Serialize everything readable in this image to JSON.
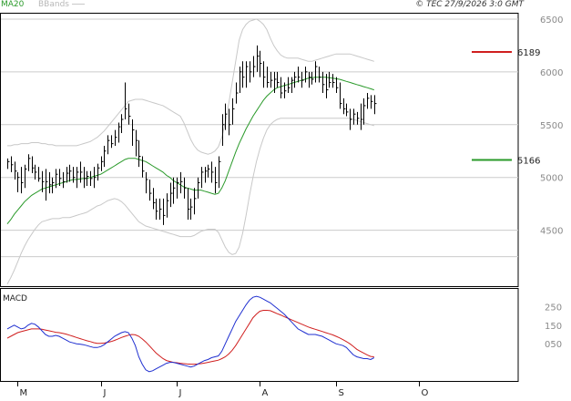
{
  "header": {
    "legend_ma": "MA20",
    "legend_bb": "BBands",
    "copyright": "© TEC 27/9/2026 3:0 GMT"
  },
  "colors": {
    "ma": "#2a9a2a",
    "bands": "#c8c8c8",
    "bars": "#000000",
    "macd": "#1f2fd0",
    "signal": "#d01f1f",
    "resistance": "#d01f1f",
    "support": "#2a9a2a",
    "grid": "#cccccc"
  },
  "chart_data": [
    {
      "type": "ohlc",
      "title": "",
      "ylim": [
        3970,
        6560
      ],
      "y_ticks": [
        4500,
        5000,
        5500,
        6000,
        6500
      ],
      "y_tick_labels": [
        "4500",
        "5000",
        "5500",
        "6000",
        "6500"
      ],
      "x_tick_labels": [
        "M",
        "J",
        "J",
        "A",
        "S",
        "O"
      ],
      "x_tick_index": [
        3,
        27,
        49,
        73,
        95,
        119
      ],
      "grid": true,
      "bars": [
        [
          5180,
          5080,
          5150
        ],
        [
          5200,
          5050,
          5120
        ],
        [
          5150,
          4980,
          5060
        ],
        [
          5050,
          4860,
          5000
        ],
        [
          5100,
          4850,
          4950
        ],
        [
          5120,
          4900,
          5080
        ],
        [
          5220,
          5060,
          5180
        ],
        [
          5200,
          5040,
          5090
        ],
        [
          5120,
          4980,
          5050
        ],
        [
          5100,
          4960,
          4990
        ],
        [
          5060,
          4860,
          4960
        ],
        [
          5080,
          4780,
          4960
        ],
        [
          5050,
          4850,
          4930
        ],
        [
          5000,
          4850,
          4950
        ],
        [
          5080,
          4900,
          5030
        ],
        [
          5080,
          4920,
          4990
        ],
        [
          5050,
          4900,
          4960
        ],
        [
          5100,
          4950,
          5040
        ],
        [
          5120,
          4960,
          5060
        ],
        [
          5100,
          4950,
          5000
        ],
        [
          5100,
          4900,
          5050
        ],
        [
          5150,
          4950,
          5050
        ],
        [
          5100,
          4900,
          4990
        ],
        [
          5060,
          4920,
          5010
        ],
        [
          5060,
          4920,
          4990
        ],
        [
          5100,
          4900,
          5000
        ],
        [
          5130,
          4970,
          5090
        ],
        [
          5200,
          5060,
          5150
        ],
        [
          5300,
          5100,
          5250
        ],
        [
          5400,
          5220,
          5350
        ],
        [
          5400,
          5280,
          5320
        ],
        [
          5450,
          5300,
          5380
        ],
        [
          5520,
          5330,
          5480
        ],
        [
          5600,
          5420,
          5550
        ],
        [
          5900,
          5550,
          5650
        ],
        [
          5700,
          5500,
          5580
        ],
        [
          5550,
          5300,
          5450
        ],
        [
          5450,
          5200,
          5350
        ],
        [
          5350,
          5100,
          5200
        ],
        [
          5200,
          5000,
          5060
        ],
        [
          5050,
          4850,
          4980
        ],
        [
          4980,
          4780,
          4850
        ],
        [
          4900,
          4700,
          4760
        ],
        [
          4800,
          4600,
          4680
        ],
        [
          4800,
          4600,
          4700
        ],
        [
          4800,
          4550,
          4640
        ],
        [
          4850,
          4620,
          4780
        ],
        [
          4950,
          4720,
          4850
        ],
        [
          5000,
          4750,
          4900
        ],
        [
          5000,
          4800,
          4950
        ],
        [
          5050,
          4850,
          4960
        ],
        [
          5000,
          4800,
          4900
        ],
        [
          4900,
          4600,
          4700
        ],
        [
          4800,
          4600,
          4720
        ],
        [
          4900,
          4650,
          4800
        ],
        [
          5000,
          4800,
          4950
        ],
        [
          5100,
          4900,
          5050
        ],
        [
          5100,
          4950,
          5060
        ],
        [
          5120,
          5000,
          5080
        ],
        [
          5150,
          4950,
          5050
        ],
        [
          5100,
          4850,
          4950
        ],
        [
          5200,
          4900,
          5150
        ],
        [
          5600,
          5300,
          5500
        ],
        [
          5700,
          5450,
          5600
        ],
        [
          5650,
          5400,
          5500
        ],
        [
          5750,
          5500,
          5650
        ],
        [
          5900,
          5700,
          5800
        ],
        [
          6050,
          5800,
          6000
        ],
        [
          6100,
          5850,
          5950
        ],
        [
          6100,
          5850,
          6050
        ],
        [
          6100,
          5900,
          6000
        ],
        [
          6150,
          5950,
          6050
        ],
        [
          6250,
          6000,
          6150
        ],
        [
          6200,
          5950,
          6080
        ],
        [
          6100,
          5850,
          5950
        ],
        [
          6050,
          5850,
          5900
        ],
        [
          6000,
          5850,
          5920
        ],
        [
          6000,
          5800,
          5930
        ],
        [
          6000,
          5850,
          5900
        ],
        [
          5950,
          5750,
          5800
        ],
        [
          5900,
          5750,
          5820
        ],
        [
          5950,
          5800,
          5850
        ],
        [
          5950,
          5800,
          5920
        ],
        [
          6000,
          5850,
          5950
        ],
        [
          6050,
          5900,
          5950
        ],
        [
          6000,
          5850,
          5920
        ],
        [
          6050,
          5900,
          6000
        ],
        [
          6000,
          5850,
          5950
        ],
        [
          6000,
          5880,
          5930
        ],
        [
          6100,
          5900,
          6050
        ],
        [
          6050,
          5900,
          5950
        ],
        [
          6000,
          5800,
          5880
        ],
        [
          5980,
          5750,
          5830
        ],
        [
          6000,
          5850,
          5900
        ],
        [
          5980,
          5850,
          5900
        ],
        [
          5950,
          5800,
          5850
        ],
        [
          5900,
          5650,
          5700
        ],
        [
          5750,
          5600,
          5650
        ],
        [
          5700,
          5580,
          5620
        ],
        [
          5650,
          5450,
          5550
        ],
        [
          5650,
          5500,
          5600
        ],
        [
          5620,
          5500,
          5560
        ],
        [
          5700,
          5450,
          5550
        ],
        [
          5750,
          5500,
          5680
        ],
        [
          5800,
          5650,
          5750
        ],
        [
          5780,
          5650,
          5720
        ],
        [
          5780,
          5600,
          5700
        ]
      ],
      "bands_upper": [
        5300,
        5300,
        5310,
        5310,
        5320,
        5320,
        5320,
        5330,
        5330,
        5330,
        5320,
        5320,
        5310,
        5310,
        5300,
        5300,
        5300,
        5300,
        5300,
        5300,
        5300,
        5310,
        5320,
        5330,
        5340,
        5360,
        5380,
        5410,
        5440,
        5480,
        5520,
        5560,
        5600,
        5640,
        5680,
        5720,
        5730,
        5740,
        5740,
        5740,
        5730,
        5720,
        5710,
        5700,
        5690,
        5680,
        5660,
        5640,
        5620,
        5600,
        5580,
        5520,
        5440,
        5360,
        5300,
        5260,
        5240,
        5230,
        5220,
        5230,
        5250,
        5290,
        5380,
        5520,
        5700,
        5900,
        6100,
        6300,
        6400,
        6450,
        6480,
        6490,
        6500,
        6480,
        6450,
        6400,
        6320,
        6250,
        6200,
        6160,
        6140,
        6130,
        6130,
        6130,
        6130,
        6120,
        6110,
        6100,
        6100,
        6110,
        6120,
        6130,
        6140,
        6150,
        6160,
        6170,
        6170,
        6170,
        6170,
        6170,
        6160,
        6150,
        6140,
        6130,
        6120,
        6110,
        6100
      ],
      "bands_lower": [
        3990,
        4050,
        4120,
        4200,
        4280,
        4350,
        4410,
        4460,
        4510,
        4550,
        4580,
        4590,
        4600,
        4610,
        4610,
        4610,
        4620,
        4620,
        4620,
        4630,
        4640,
        4650,
        4660,
        4670,
        4690,
        4710,
        4730,
        4740,
        4760,
        4780,
        4790,
        4800,
        4790,
        4770,
        4740,
        4700,
        4660,
        4620,
        4580,
        4560,
        4540,
        4530,
        4520,
        4510,
        4500,
        4490,
        4480,
        4470,
        4460,
        4450,
        4440,
        4440,
        4440,
        4440,
        4450,
        4470,
        4490,
        4500,
        4510,
        4510,
        4510,
        4480,
        4410,
        4340,
        4290,
        4270,
        4280,
        4340,
        4470,
        4640,
        4830,
        5000,
        5150,
        5270,
        5370,
        5450,
        5500,
        5530,
        5550,
        5560,
        5560,
        5560,
        5560,
        5560,
        5560,
        5560,
        5560,
        5560,
        5560,
        5560,
        5560,
        5560,
        5560,
        5560,
        5560,
        5560,
        5560,
        5560,
        5560,
        5560,
        5550,
        5540,
        5530,
        5520,
        5510,
        5500,
        5490
      ],
      "ma20": [
        4560,
        4600,
        4650,
        4690,
        4730,
        4770,
        4800,
        4830,
        4850,
        4870,
        4890,
        4900,
        4910,
        4920,
        4930,
        4940,
        4950,
        4960,
        4970,
        4980,
        4980,
        4985,
        4990,
        4990,
        5000,
        5010,
        5020,
        5030,
        5050,
        5070,
        5090,
        5110,
        5130,
        5150,
        5170,
        5180,
        5180,
        5180,
        5170,
        5160,
        5150,
        5130,
        5110,
        5090,
        5070,
        5050,
        5020,
        5000,
        4970,
        4950,
        4930,
        4910,
        4900,
        4890,
        4880,
        4880,
        4880,
        4870,
        4860,
        4850,
        4840,
        4850,
        4900,
        4970,
        5060,
        5150,
        5240,
        5320,
        5390,
        5460,
        5520,
        5580,
        5630,
        5680,
        5730,
        5770,
        5800,
        5830,
        5850,
        5860,
        5870,
        5880,
        5890,
        5900,
        5910,
        5920,
        5930,
        5940,
        5945,
        5950,
        5950,
        5950,
        5950,
        5945,
        5940,
        5935,
        5930,
        5920,
        5910,
        5900,
        5890,
        5880,
        5870,
        5860,
        5850,
        5840,
        5830
      ],
      "levels": [
        {
          "value": 6189,
          "label": "6189",
          "kind": "resistance"
        },
        {
          "value": 5166,
          "label": "5166",
          "kind": "support"
        }
      ]
    },
    {
      "type": "line",
      "title": "MACD",
      "ylim": [
        -150,
        350
      ],
      "y_ticks": [
        250,
        150,
        50
      ],
      "y_tick_labels": [
        "250",
        "150",
        "050"
      ],
      "series": [
        {
          "values": [
            130,
            140,
            150,
            140,
            130,
            135,
            150,
            160,
            155,
            140,
            120,
            100,
            90,
            90,
            95,
            90,
            80,
            70,
            60,
            55,
            50,
            48,
            45,
            40,
            35,
            30,
            30,
            35,
            45,
            60,
            75,
            90,
            100,
            110,
            115,
            110,
            80,
            40,
            -20,
            -60,
            -90,
            -100,
            -95,
            -85,
            -75,
            -65,
            -55,
            -50,
            -50,
            -55,
            -60,
            -65,
            -70,
            -75,
            -70,
            -60,
            -50,
            -40,
            -35,
            -25,
            -20,
            -15,
            10,
            50,
            90,
            130,
            170,
            200,
            230,
            260,
            285,
            300,
            305,
            300,
            290,
            280,
            270,
            255,
            240,
            225,
            210,
            190,
            170,
            150,
            130,
            120,
            110,
            100,
            100,
            100,
            95,
            90,
            80,
            70,
            60,
            50,
            45,
            40,
            30,
            10,
            -10,
            -20,
            -25,
            -30,
            -30,
            -35,
            -25
          ]
        },
        {
          "values": [
            80,
            90,
            100,
            110,
            115,
            120,
            125,
            130,
            130,
            130,
            128,
            124,
            120,
            116,
            112,
            110,
            106,
            102,
            96,
            90,
            84,
            78,
            72,
            66,
            62,
            56,
            52,
            52,
            54,
            58,
            62,
            68,
            76,
            84,
            90,
            96,
            100,
            98,
            90,
            76,
            60,
            40,
            20,
            0,
            -15,
            -30,
            -40,
            -45,
            -50,
            -52,
            -55,
            -57,
            -59,
            -60,
            -60,
            -59,
            -57,
            -54,
            -50,
            -46,
            -42,
            -38,
            -30,
            -20,
            -5,
            15,
            40,
            70,
            100,
            130,
            160,
            190,
            210,
            225,
            230,
            230,
            228,
            220,
            212,
            205,
            196,
            188,
            180,
            172,
            164,
            156,
            148,
            140,
            134,
            128,
            122,
            116,
            110,
            104,
            98,
            90,
            82,
            72,
            62,
            50,
            36,
            20,
            10,
            0,
            -10,
            -18,
            -20
          ]
        }
      ]
    }
  ]
}
